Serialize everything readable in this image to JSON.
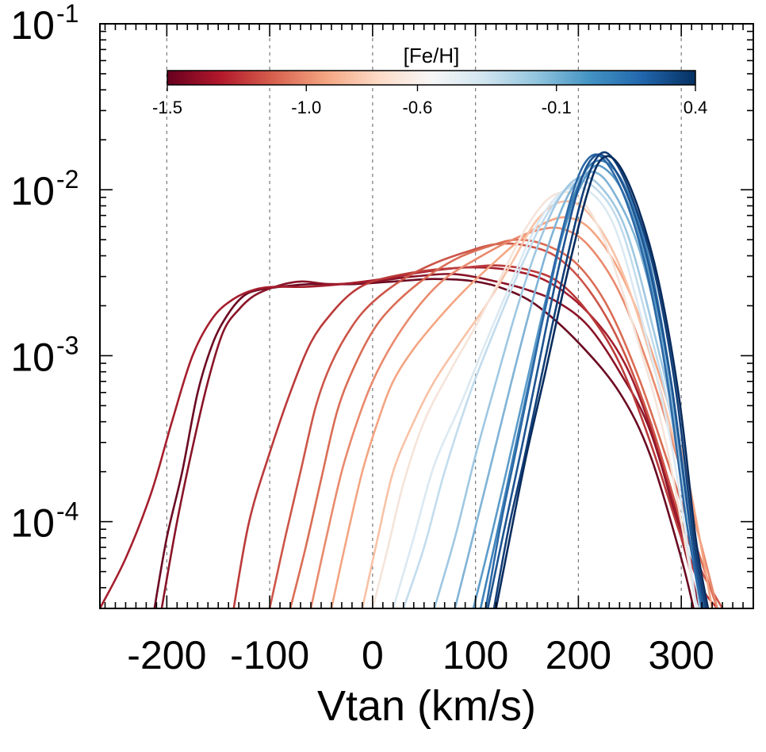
{
  "chart_data": {
    "type": "line",
    "xlabel": "Vtan (km/s)",
    "ylabel": "",
    "y_scale": "log",
    "xlim": [
      -265,
      370
    ],
    "ylim": [
      3e-05,
      0.1
    ],
    "x_ticks": [
      {
        "value": -200,
        "label": "-200"
      },
      {
        "value": -100,
        "label": "-100"
      },
      {
        "value": 0,
        "label": "0"
      },
      {
        "value": 100,
        "label": "100"
      },
      {
        "value": 200,
        "label": "200"
      },
      {
        "value": 300,
        "label": "300"
      }
    ],
    "y_ticks": [
      {
        "value": 0.0001,
        "base": "10",
        "exp": "-4"
      },
      {
        "value": 0.001,
        "base": "10",
        "exp": "-3"
      },
      {
        "value": 0.01,
        "base": "10",
        "exp": "-2"
      },
      {
        "value": 0.1,
        "base": "10",
        "exp": "-1"
      }
    ],
    "vertical_gridlines_at": [
      -200,
      -100,
      0,
      100,
      200,
      300
    ],
    "colorbar": {
      "title": "[Fe/H]",
      "placement": "top",
      "min": -1.5,
      "max": 0.4,
      "ticks": [
        {
          "value": -1.5,
          "label": "-1.5"
        },
        {
          "value": -1.0,
          "label": "-1.0"
        },
        {
          "value": -0.6,
          "label": "-0.6"
        },
        {
          "value": -0.1,
          "label": "-0.1"
        },
        {
          "value": 0.4,
          "label": "0.4"
        }
      ],
      "colors": [
        "#67001f",
        "#b2182b",
        "#d6604d",
        "#f4a582",
        "#fddbc7",
        "#f7f7f7",
        "#d1e5f0",
        "#92c5de",
        "#4393c3",
        "#2166ac",
        "#053061"
      ]
    },
    "series": [
      {
        "feh": -1.5,
        "color": "#6b0a22",
        "x": [
          -212,
          -200,
          -185,
          -170,
          -155,
          -140,
          -125,
          -110,
          -90,
          -60,
          -20,
          20,
          60,
          100,
          130,
          160,
          200,
          240,
          270,
          300,
          312
        ],
        "y": [
          3e-05,
          8e-05,
          0.0002,
          0.0006,
          0.0012,
          0.0018,
          0.0023,
          0.0025,
          0.0026,
          0.0027,
          0.0027,
          0.0028,
          0.0029,
          0.0028,
          0.0025,
          0.002,
          0.0012,
          0.0006,
          0.00025,
          6e-05,
          3e-05
        ]
      },
      {
        "feh": -1.4,
        "color": "#8a1428",
        "x": [
          -205,
          -190,
          -175,
          -160,
          -145,
          -130,
          -115,
          -95,
          -70,
          -40,
          0,
          40,
          80,
          120,
          150,
          180,
          210,
          240,
          270,
          300,
          318
        ],
        "y": [
          3e-05,
          0.0001,
          0.00028,
          0.0007,
          0.0014,
          0.0019,
          0.0023,
          0.0026,
          0.0028,
          0.0027,
          0.0028,
          0.003,
          0.0031,
          0.0028,
          0.0025,
          0.0021,
          0.0015,
          0.0008,
          0.00035,
          8e-05,
          3e-05
        ]
      },
      {
        "feh": -1.3,
        "color": "#a51e2d",
        "x": [
          -265,
          -240,
          -215,
          -195,
          -175,
          -155,
          -135,
          -115,
          -95,
          -65,
          -30,
          10,
          50,
          90,
          130,
          170,
          210,
          245,
          275,
          305,
          325
        ],
        "y": [
          3e-05,
          6e-05,
          0.00015,
          0.0004,
          0.001,
          0.0017,
          0.0022,
          0.0025,
          0.0026,
          0.0026,
          0.0027,
          0.0029,
          0.0032,
          0.0034,
          0.0033,
          0.0028,
          0.0018,
          0.0009,
          0.0003,
          7e-05,
          3e-05
        ]
      },
      {
        "feh": -1.2,
        "color": "#bb3a3a",
        "x": [
          -135,
          -120,
          -100,
          -80,
          -60,
          -40,
          -20,
          0,
          30,
          60,
          90,
          120,
          150,
          180,
          210,
          240,
          270,
          300,
          320,
          335
        ],
        "y": [
          3e-05,
          0.0001,
          0.00026,
          0.0006,
          0.0012,
          0.0018,
          0.0024,
          0.0028,
          0.0031,
          0.0033,
          0.0034,
          0.0035,
          0.0033,
          0.0028,
          0.0018,
          0.0009,
          0.0003,
          8e-05,
          4e-05,
          3e-05
        ]
      },
      {
        "feh": -1.1,
        "color": "#cc5548",
        "x": [
          -100,
          -85,
          -70,
          -55,
          -40,
          -20,
          0,
          30,
          60,
          90,
          120,
          150,
          180,
          210,
          240,
          270,
          300,
          320,
          340
        ],
        "y": [
          3e-05,
          8e-05,
          0.0002,
          0.0005,
          0.0009,
          0.0015,
          0.0021,
          0.0029,
          0.0036,
          0.0042,
          0.0047,
          0.0046,
          0.0039,
          0.0025,
          0.0012,
          0.0004,
          0.0001,
          5e-05,
          3e-05
        ]
      },
      {
        "feh": -1.0,
        "color": "#da6d55",
        "x": [
          -80,
          -65,
          -50,
          -35,
          -20,
          0,
          20,
          50,
          80,
          110,
          140,
          170,
          200,
          230,
          260,
          290,
          315,
          335
        ],
        "y": [
          3e-05,
          7e-05,
          0.00018,
          0.00045,
          0.0008,
          0.0014,
          0.002,
          0.0029,
          0.0038,
          0.0045,
          0.005,
          0.0046,
          0.0035,
          0.0019,
          0.0007,
          0.0002,
          7e-05,
          3e-05
        ]
      },
      {
        "feh": -0.9,
        "color": "#e98a6d",
        "x": [
          -60,
          -45,
          -30,
          -15,
          0,
          20,
          45,
          70,
          100,
          130,
          160,
          185,
          210,
          240,
          270,
          300,
          320,
          335
        ],
        "y": [
          3e-05,
          8e-05,
          0.0002,
          0.0004,
          0.0007,
          0.0012,
          0.002,
          0.0029,
          0.0038,
          0.0048,
          0.0057,
          0.0058,
          0.0046,
          0.0024,
          0.0008,
          0.0002,
          7e-05,
          3e-05
        ]
      },
      {
        "feh": -0.8,
        "color": "#f4a582",
        "x": [
          -40,
          -25,
          -10,
          5,
          20,
          40,
          65,
          90,
          115,
          140,
          165,
          190,
          215,
          245,
          275,
          305,
          330
        ],
        "y": [
          3e-05,
          8e-05,
          0.0002,
          0.0004,
          0.0007,
          0.0011,
          0.0017,
          0.0025,
          0.0035,
          0.0048,
          0.0062,
          0.0068,
          0.0055,
          0.0028,
          0.0009,
          0.0002,
          3e-05
        ]
      },
      {
        "feh": -0.7,
        "color": "#f8c2a6",
        "x": [
          -10,
          5,
          20,
          40,
          60,
          85,
          110,
          135,
          160,
          185,
          210,
          240,
          270,
          300,
          325
        ],
        "y": [
          3e-05,
          8e-05,
          0.0002,
          0.0004,
          0.0007,
          0.0012,
          0.002,
          0.0036,
          0.0066,
          0.0085,
          0.0072,
          0.0035,
          0.001,
          0.0002,
          3e-05
        ]
      },
      {
        "feh": -0.6,
        "color": "#f5e4da",
        "x": [
          0,
          15,
          30,
          50,
          75,
          100,
          125,
          150,
          175,
          200,
          225,
          255,
          285,
          315
        ],
        "y": [
          3e-05,
          7e-05,
          0.00017,
          0.0004,
          0.0008,
          0.0015,
          0.003,
          0.006,
          0.0092,
          0.009,
          0.005,
          0.0014,
          0.0003,
          3e-05
        ]
      },
      {
        "feh": -0.5,
        "color": "#dbe9f2",
        "x": [
          20,
          40,
          60,
          85,
          110,
          135,
          160,
          185,
          210,
          235,
          260,
          290,
          315
        ],
        "y": [
          3e-05,
          8e-05,
          0.00022,
          0.0005,
          0.0012,
          0.0028,
          0.0062,
          0.0098,
          0.0098,
          0.006,
          0.0018,
          0.0003,
          3e-05
        ]
      },
      {
        "feh": -0.4,
        "color": "#c2dced",
        "x": [
          30,
          50,
          70,
          95,
          120,
          145,
          170,
          195,
          215,
          240,
          265,
          295,
          318
        ],
        "y": [
          3e-05,
          7e-05,
          0.0002,
          0.0006,
          0.0015,
          0.0035,
          0.0072,
          0.0108,
          0.0104,
          0.0062,
          0.0018,
          0.0003,
          3e-05
        ]
      },
      {
        "feh": -0.3,
        "color": "#9fc8e2",
        "x": [
          60,
          80,
          100,
          120,
          140,
          160,
          180,
          200,
          220,
          245,
          270,
          300,
          318
        ],
        "y": [
          3e-05,
          8e-05,
          0.00025,
          0.0007,
          0.0019,
          0.0045,
          0.0086,
          0.0118,
          0.0107,
          0.006,
          0.0017,
          0.00025,
          3e-05
        ]
      },
      {
        "feh": -0.2,
        "color": "#7fb3d6",
        "x": [
          80,
          95,
          115,
          135,
          155,
          175,
          195,
          215,
          235,
          260,
          285,
          310,
          320
        ],
        "y": [
          3e-05,
          7e-05,
          0.00022,
          0.0007,
          0.0021,
          0.0055,
          0.0105,
          0.0128,
          0.0095,
          0.0042,
          0.0009,
          8e-05,
          3e-05
        ]
      },
      {
        "feh": -0.1,
        "color": "#5b9bc9",
        "x": [
          98,
          115,
          130,
          150,
          170,
          190,
          210,
          225,
          245,
          265,
          290,
          310,
          322
        ],
        "y": [
          3e-05,
          8e-05,
          0.0002,
          0.0007,
          0.0024,
          0.0068,
          0.0128,
          0.0135,
          0.0092,
          0.0038,
          0.0007,
          8e-05,
          3e-05
        ]
      },
      {
        "feh": 0.0,
        "color": "#3e82ba",
        "x": [
          105,
          120,
          135,
          150,
          170,
          190,
          210,
          230,
          250,
          270,
          290,
          310,
          322
        ],
        "y": [
          3e-05,
          8e-05,
          0.00022,
          0.0006,
          0.0022,
          0.0072,
          0.0138,
          0.0142,
          0.009,
          0.0035,
          0.0007,
          8e-05,
          3e-05
        ]
      },
      {
        "feh": 0.1,
        "color": "#2c69a6",
        "x": [
          110,
          125,
          140,
          155,
          175,
          195,
          210,
          225,
          245,
          265,
          285,
          305,
          320
        ],
        "y": [
          3e-05,
          0.0001,
          0.00028,
          0.0008,
          0.0032,
          0.0098,
          0.0155,
          0.0152,
          0.009,
          0.0035,
          0.0008,
          0.0001,
          3e-05
        ]
      },
      {
        "feh": 0.2,
        "color": "#1d5491",
        "x": [
          112,
          128,
          145,
          160,
          180,
          200,
          215,
          230,
          250,
          270,
          290,
          310,
          322
        ],
        "y": [
          3e-05,
          9e-05,
          0.00028,
          0.0008,
          0.0032,
          0.0102,
          0.0158,
          0.0148,
          0.0085,
          0.0032,
          0.0007,
          8e-05,
          3e-05
        ]
      },
      {
        "feh": 0.3,
        "color": "#133f78",
        "x": [
          118,
          132,
          148,
          165,
          185,
          205,
          220,
          235,
          255,
          275,
          295,
          312,
          324
        ],
        "y": [
          3e-05,
          9e-05,
          0.00025,
          0.0008,
          0.003,
          0.0098,
          0.0162,
          0.015,
          0.008,
          0.003,
          0.0006,
          8e-05,
          3e-05
        ]
      },
      {
        "feh": 0.4,
        "color": "#082c5e",
        "x": [
          120,
          135,
          150,
          168,
          188,
          208,
          222,
          238,
          258,
          278,
          298,
          314,
          326
        ],
        "y": [
          3e-05,
          9e-05,
          0.00026,
          0.0008,
          0.0029,
          0.0092,
          0.0152,
          0.0145,
          0.0078,
          0.0028,
          0.00055,
          8e-05,
          3e-05
        ]
      }
    ]
  }
}
